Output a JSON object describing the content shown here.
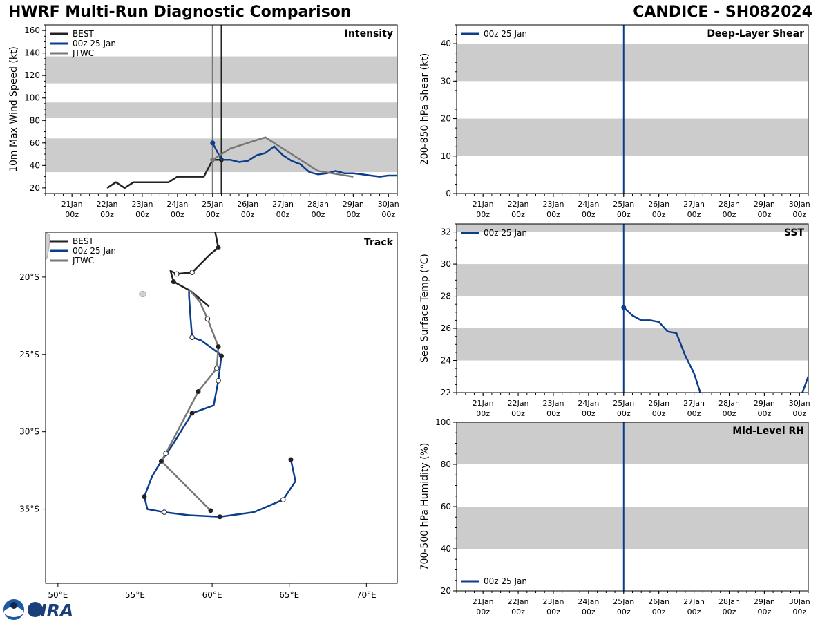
{
  "header": {
    "title": "HWRF Multi-Run Diagnostic Comparison",
    "storm": "CANDICE - SH082024"
  },
  "colors": {
    "best": "#222222",
    "hwrf": "#0c3c8c",
    "jtwc": "#777777",
    "band": "#cccccc"
  },
  "logos": {
    "noaa_icon": "noaa-logo-icon",
    "cira_text": "CIRA"
  },
  "time_axis": {
    "days": [
      21,
      22,
      23,
      24,
      25,
      26,
      27,
      28,
      29,
      30
    ],
    "labels_top": [
      "21Jan",
      "22Jan",
      "23Jan",
      "24Jan",
      "25Jan",
      "26Jan",
      "27Jan",
      "28Jan",
      "29Jan",
      "30Jan"
    ],
    "labels_bottom": [
      "00z",
      "00z",
      "00z",
      "00z",
      "00z",
      "00z",
      "00z",
      "00z",
      "00z",
      "00z"
    ],
    "range": [
      20.25,
      30.25
    ]
  },
  "chart_data": [
    {
      "id": "intensity",
      "type": "line",
      "title": "Intensity",
      "ylabel": "10m Max Wind Speed (kt)",
      "ylim": [
        15,
        165
      ],
      "yticks": [
        20,
        40,
        60,
        80,
        100,
        120,
        140,
        160
      ],
      "bands": [
        [
          34,
          64
        ],
        [
          82,
          96
        ],
        [
          113,
          137
        ]
      ],
      "vlines": [
        {
          "x": 25.0,
          "series": "jtwc"
        },
        {
          "x": 25.25,
          "series": "best"
        }
      ],
      "legend": [
        {
          "name": "BEST",
          "series": "best"
        },
        {
          "name": "00z 25 Jan",
          "series": "hwrf"
        },
        {
          "name": "JTWC",
          "series": "jtwc"
        }
      ],
      "series": [
        {
          "name": "BEST",
          "key": "best",
          "x": [
            22.0,
            22.25,
            22.5,
            22.75,
            23.0,
            23.25,
            23.5,
            23.75,
            24.0,
            24.25,
            24.5,
            24.75,
            25.0,
            25.25
          ],
          "y": [
            20,
            25,
            20,
            25,
            25,
            25,
            25,
            25,
            30,
            30,
            30,
            30,
            45,
            45
          ],
          "markers": [
            {
              "x": 25.25,
              "y": 45
            }
          ]
        },
        {
          "name": "00z 25 Jan",
          "key": "hwrf",
          "x": [
            25.0,
            25.25,
            25.5,
            25.75,
            26.0,
            26.25,
            26.5,
            26.75,
            27.0,
            27.25,
            27.5,
            27.75,
            28.0,
            28.25,
            28.5,
            28.75,
            29.0,
            29.25,
            29.5,
            29.75,
            30.0,
            30.25
          ],
          "y": [
            60,
            45,
            45,
            43,
            44,
            49,
            51,
            57,
            49,
            44,
            41,
            34,
            32,
            33,
            35,
            33,
            33,
            32,
            31,
            30,
            31,
            31
          ],
          "markers": [
            {
              "x": 25.0,
              "y": 60
            }
          ]
        },
        {
          "name": "JTWC",
          "key": "jtwc",
          "x": [
            25.0,
            25.5,
            26.5,
            28.0,
            29.0
          ],
          "y": [
            45,
            55,
            65,
            35,
            30
          ],
          "markers": [
            {
              "x": 25.0,
              "y": 45
            }
          ]
        }
      ]
    },
    {
      "id": "track",
      "type": "line",
      "title": "Track",
      "xlabel": "Longitude",
      "ylabel": "Latitude",
      "xlim": [
        49.2,
        72
      ],
      "ylim": [
        -39.8,
        -17.1
      ],
      "xticks": [
        50,
        55,
        60,
        65,
        70
      ],
      "xtick_labels": [
        "50°E",
        "55°E",
        "60°E",
        "65°E",
        "70°E"
      ],
      "yticks": [
        -20,
        -25,
        -30,
        -35
      ],
      "ytick_labels": [
        "20°S",
        "25°S",
        "30°S",
        "35°S"
      ],
      "legend": [
        {
          "name": "BEST",
          "series": "best"
        },
        {
          "name": "00z 25 Jan",
          "series": "hwrf"
        },
        {
          "name": "JTWC",
          "series": "jtwc"
        }
      ],
      "land": {
        "name": "Mauritius",
        "lon": 55.5,
        "lat": -21.1
      },
      "series": [
        {
          "name": "BEST",
          "key": "best",
          "lon": [
            60.2,
            60.4,
            59.9,
            58.7,
            57.7,
            57.3,
            57.5,
            58.6,
            59.8
          ],
          "lat": [
            -17.1,
            -18.1,
            -18.5,
            -19.7,
            -19.8,
            -19.6,
            -20.3,
            -20.9,
            -21.9
          ],
          "markers_filled": [
            {
              "lon": 60.4,
              "lat": -18.1
            },
            {
              "lon": 57.5,
              "lat": -20.3
            }
          ],
          "markers_open": [
            {
              "lon": 58.7,
              "lat": -19.7
            },
            {
              "lon": 57.7,
              "lat": -19.8
            }
          ]
        },
        {
          "name": "00z 25 Jan",
          "key": "hwrf",
          "lon": [
            58.5,
            58.5,
            58.6,
            58.7,
            59.3,
            60.4,
            60.6,
            60.4,
            60.1,
            58.7,
            57.4,
            56.7,
            56.1,
            55.6,
            55.8,
            56.9,
            58.5,
            60.5,
            62.7,
            64.6,
            65.4,
            65.1
          ],
          "lat": [
            -20.8,
            -21.2,
            -22.7,
            -23.9,
            -24.1,
            -24.9,
            -25.1,
            -26.7,
            -28.3,
            -28.8,
            -30.9,
            -31.9,
            -32.9,
            -34.2,
            -35.0,
            -35.2,
            -35.4,
            -35.5,
            -35.2,
            -34.4,
            -33.2,
            -31.8
          ],
          "markers_filled": [
            {
              "lon": 60.6,
              "lat": -25.1
            },
            {
              "lon": 58.7,
              "lat": -28.8
            },
            {
              "lon": 55.6,
              "lat": -34.2
            },
            {
              "lon": 60.5,
              "lat": -35.5
            },
            {
              "lon": 65.1,
              "lat": -31.8
            }
          ],
          "markers_open": [
            {
              "lon": 58.7,
              "lat": -23.9
            },
            {
              "lon": 60.4,
              "lat": -26.7
            },
            {
              "lon": 56.9,
              "lat": -35.2
            },
            {
              "lon": 64.6,
              "lat": -34.4
            }
          ]
        },
        {
          "name": "JTWC",
          "key": "jtwc",
          "lon": [
            58.5,
            59.2,
            59.7,
            60.4,
            60.3,
            59.1,
            57.0,
            56.7,
            59.9
          ],
          "lat": [
            -20.8,
            -21.6,
            -22.7,
            -24.5,
            -25.9,
            -27.4,
            -31.4,
            -31.9,
            -35.1
          ],
          "markers_filled": [
            {
              "lon": 60.4,
              "lat": -24.5
            },
            {
              "lon": 59.1,
              "lat": -27.4
            },
            {
              "lon": 56.7,
              "lat": -31.9
            },
            {
              "lon": 59.9,
              "lat": -35.1
            }
          ],
          "markers_open": [
            {
              "lon": 59.7,
              "lat": -22.7
            },
            {
              "lon": 60.3,
              "lat": -25.9
            },
            {
              "lon": 57.0,
              "lat": -31.4
            }
          ]
        }
      ]
    },
    {
      "id": "shear",
      "type": "line",
      "title": "Deep-Layer Shear",
      "ylabel": "200-850 hPa Shear (kt)",
      "ylim": [
        0,
        45
      ],
      "yticks": [
        0,
        10,
        20,
        30,
        40
      ],
      "bands": [
        [
          10,
          20
        ],
        [
          30,
          40
        ]
      ],
      "vlines": [
        {
          "x": 25.0,
          "series": "hwrf"
        }
      ],
      "legend": [
        {
          "name": "00z 25 Jan",
          "series": "hwrf"
        }
      ],
      "series": []
    },
    {
      "id": "sst",
      "type": "line",
      "title": "SST",
      "ylabel": "Sea Surface Temp (°C)",
      "ylim": [
        22,
        32.5
      ],
      "yticks": [
        22,
        24,
        26,
        28,
        30,
        32
      ],
      "bands": [
        [
          24,
          26
        ],
        [
          28,
          30
        ],
        [
          32,
          34
        ]
      ],
      "vlines": [
        {
          "x": 25.0,
          "series": "hwrf"
        }
      ],
      "legend": [
        {
          "name": "00z 25 Jan",
          "series": "hwrf"
        }
      ],
      "series": [
        {
          "name": "00z 25 Jan",
          "key": "hwrf",
          "x": [
            25.0,
            25.25,
            25.5,
            25.75,
            26.0,
            26.25,
            26.5,
            26.75,
            27.0,
            27.25,
            30.0,
            30.25
          ],
          "y": [
            27.3,
            26.8,
            26.5,
            26.5,
            26.4,
            25.8,
            25.7,
            24.3,
            23.2,
            21.5,
            21.5,
            23.0
          ],
          "markers": [
            {
              "x": 25.0,
              "y": 27.3
            }
          ]
        }
      ]
    },
    {
      "id": "rh",
      "type": "line",
      "title": "Mid-Level RH",
      "ylabel": "700-500 hPa Humidity (%)",
      "ylim": [
        20,
        100
      ],
      "yticks": [
        20,
        40,
        60,
        80,
        100
      ],
      "bands": [
        [
          40,
          60
        ],
        [
          80,
          100
        ]
      ],
      "vlines": [
        {
          "x": 25.0,
          "series": "hwrf"
        }
      ],
      "legend": [
        {
          "name": "00z 25 Jan",
          "series": "hwrf"
        }
      ],
      "legend_loc": "lower-left",
      "series": []
    }
  ]
}
